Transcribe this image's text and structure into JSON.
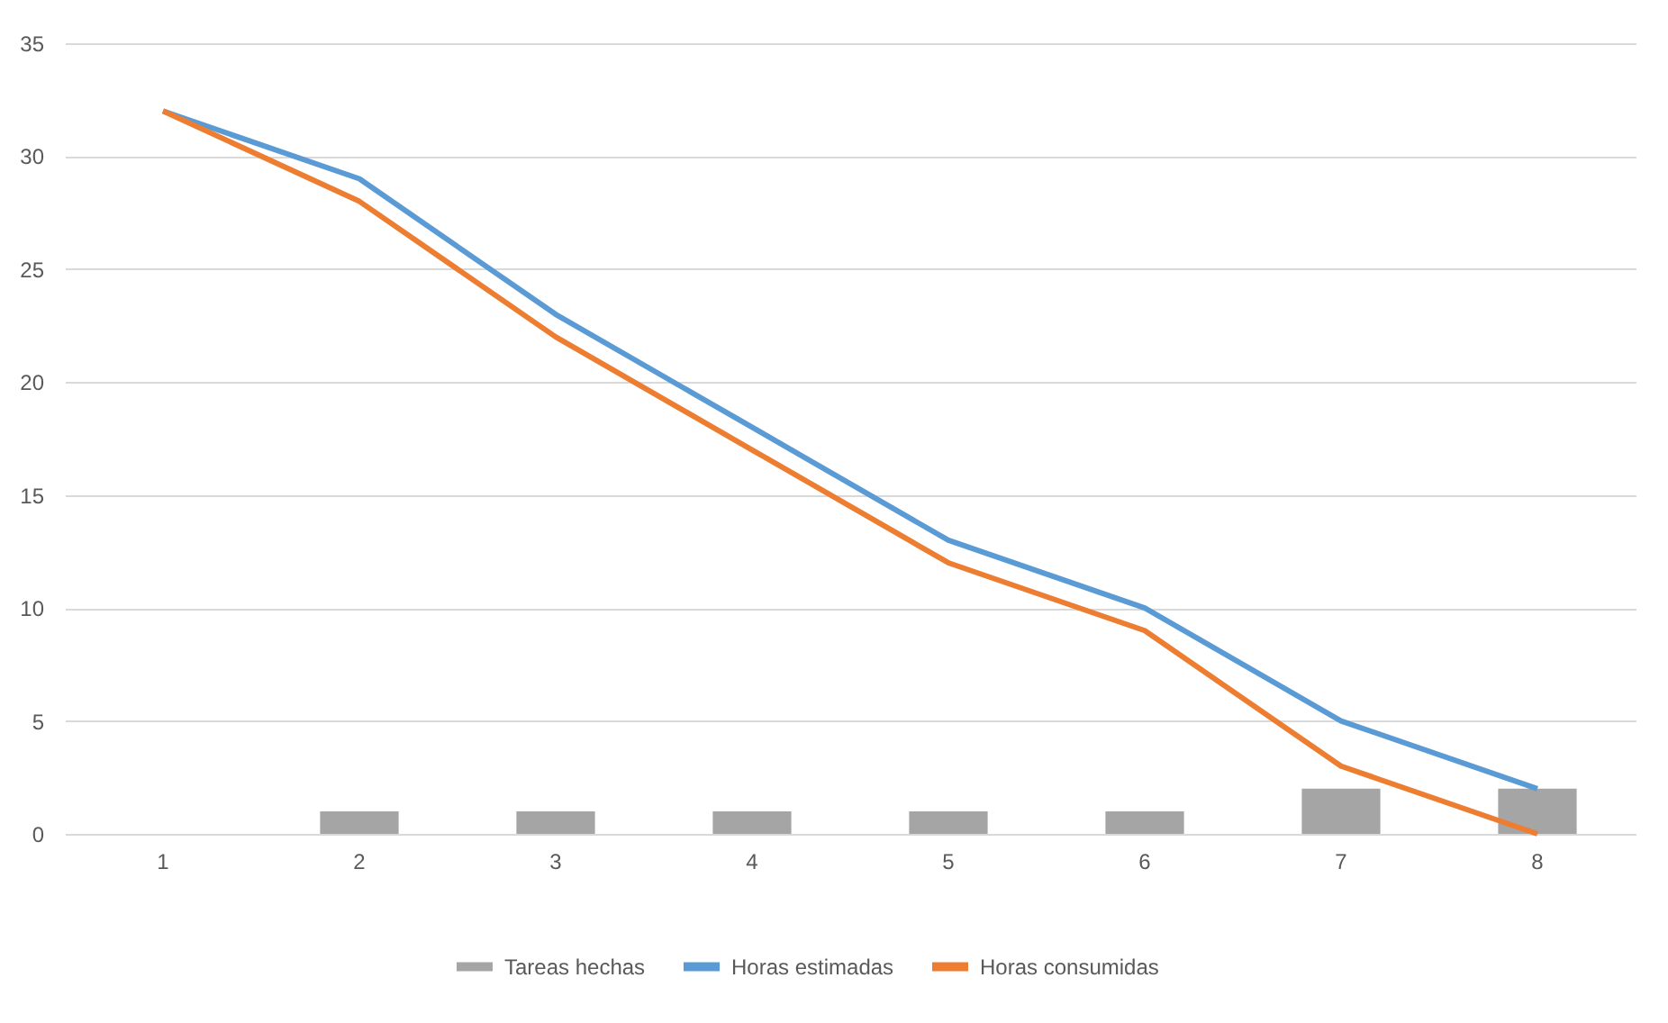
{
  "chart_data": {
    "type": "line",
    "categories": [
      "1",
      "2",
      "3",
      "4",
      "5",
      "6",
      "7",
      "8"
    ],
    "series": [
      {
        "name": "Tareas hechas",
        "type": "bar",
        "color": "#a5a5a5",
        "values": [
          0,
          1,
          1,
          1,
          1,
          1,
          2,
          2
        ]
      },
      {
        "name": "Horas estimadas",
        "color": "#5b9bd5",
        "values": [
          32,
          29,
          23,
          18,
          13,
          10,
          5,
          2
        ]
      },
      {
        "name": "Horas consumidas",
        "color": "#ed7d31",
        "values": [
          32,
          28,
          22,
          17,
          12,
          9,
          3,
          0
        ]
      }
    ],
    "ylim": [
      0,
      35
    ],
    "yticks": [
      0,
      5,
      10,
      15,
      20,
      25,
      30,
      35
    ],
    "grid": "y",
    "legend": "bottom"
  }
}
